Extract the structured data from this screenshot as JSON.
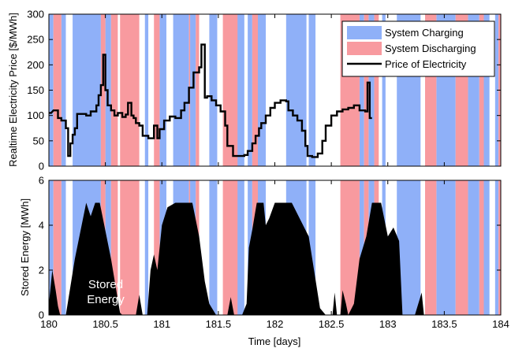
{
  "chart_data": {
    "type": "line",
    "colors": {
      "charging": "#8fb0f8",
      "discharging": "#f89a9f",
      "price_line": "#000000",
      "stored_fill": "#000000"
    },
    "x_axis": {
      "label": "Time [days]",
      "xlim": [
        180,
        184
      ],
      "ticks": [
        180,
        180.5,
        181,
        181.5,
        182,
        182.5,
        183,
        183.5,
        184
      ]
    },
    "panels": [
      {
        "name": "price",
        "ylabel": "Realtime Electricity Price [$/MWh]",
        "ylim": [
          0,
          300
        ],
        "yticks": [
          0,
          50,
          100,
          150,
          200,
          250,
          300
        ]
      },
      {
        "name": "storage",
        "ylabel": "Stored Energy [MWh]",
        "ylim": [
          0,
          6
        ],
        "yticks": [
          0,
          2,
          4,
          6
        ]
      }
    ],
    "legend": {
      "position": "top-right",
      "entries": [
        "System Charging",
        "System Discharging",
        "Price of Electricity"
      ]
    },
    "annotation": [
      "Stored",
      "Energy"
    ],
    "charging_intervals": [
      [
        180.0,
        180.04
      ],
      [
        180.11,
        180.15
      ],
      [
        180.21,
        180.46
      ],
      [
        180.5,
        180.55
      ],
      [
        180.85,
        180.88
      ],
      [
        180.98,
        181.04
      ],
      [
        181.1,
        181.24
      ],
      [
        181.25,
        181.3
      ],
      [
        181.42,
        181.49
      ],
      [
        181.62,
        181.73
      ],
      [
        181.76,
        181.8
      ],
      [
        181.85,
        181.92
      ],
      [
        182.1,
        182.28
      ],
      [
        182.3,
        182.36
      ],
      [
        182.75,
        182.79
      ],
      [
        182.83,
        182.88
      ],
      [
        182.95,
        182.98
      ],
      [
        183.08,
        183.29
      ],
      [
        183.43,
        183.6
      ],
      [
        183.71,
        183.81
      ],
      [
        183.85,
        183.9
      ],
      [
        183.95,
        183.98
      ]
    ],
    "discharging_intervals": [
      [
        180.04,
        180.11
      ],
      [
        180.46,
        180.5
      ],
      [
        180.55,
        180.61
      ],
      [
        180.63,
        180.8
      ],
      [
        180.93,
        180.98
      ],
      [
        181.24,
        181.25
      ],
      [
        181.3,
        181.33
      ],
      [
        181.54,
        181.67
      ],
      [
        181.8,
        181.85
      ],
      [
        182.58,
        182.75
      ],
      [
        182.79,
        182.83
      ],
      [
        182.88,
        182.92
      ],
      [
        183.33,
        183.43
      ],
      [
        183.6,
        183.71
      ],
      [
        183.81,
        183.85
      ],
      [
        183.98,
        184.0
      ]
    ],
    "price_series": {
      "name": "Price of Electricity",
      "step_points": [
        [
          180.0,
          105
        ],
        [
          180.02,
          105
        ],
        [
          180.04,
          110
        ],
        [
          180.08,
          110
        ],
        [
          180.08,
          95
        ],
        [
          180.11,
          95
        ],
        [
          180.11,
          90
        ],
        [
          180.15,
          90
        ],
        [
          180.15,
          75
        ],
        [
          180.17,
          75
        ],
        [
          180.17,
          20
        ],
        [
          180.19,
          20
        ],
        [
          180.19,
          45
        ],
        [
          180.21,
          45
        ],
        [
          180.21,
          62
        ],
        [
          180.23,
          62
        ],
        [
          180.23,
          75
        ],
        [
          180.25,
          75
        ],
        [
          180.25,
          103
        ],
        [
          180.33,
          103
        ],
        [
          180.33,
          100
        ],
        [
          180.37,
          100
        ],
        [
          180.37,
          108
        ],
        [
          180.42,
          108
        ],
        [
          180.42,
          120
        ],
        [
          180.44,
          120
        ],
        [
          180.44,
          140
        ],
        [
          180.46,
          140
        ],
        [
          180.46,
          160
        ],
        [
          180.48,
          160
        ],
        [
          180.48,
          220
        ],
        [
          180.5,
          220
        ],
        [
          180.5,
          150
        ],
        [
          180.52,
          150
        ],
        [
          180.52,
          120
        ],
        [
          180.55,
          120
        ],
        [
          180.55,
          110
        ],
        [
          180.58,
          110
        ],
        [
          180.58,
          100
        ],
        [
          180.61,
          100
        ],
        [
          180.61,
          105
        ],
        [
          180.65,
          105
        ],
        [
          180.65,
          97
        ],
        [
          180.68,
          97
        ],
        [
          180.68,
          102
        ],
        [
          180.7,
          102
        ],
        [
          180.7,
          125
        ],
        [
          180.73,
          125
        ],
        [
          180.73,
          100
        ],
        [
          180.75,
          100
        ],
        [
          180.75,
          95
        ],
        [
          180.77,
          95
        ],
        [
          180.77,
          85
        ],
        [
          180.8,
          85
        ],
        [
          180.8,
          80
        ],
        [
          180.83,
          80
        ],
        [
          180.83,
          60
        ],
        [
          180.88,
          60
        ],
        [
          180.88,
          55
        ],
        [
          180.93,
          55
        ],
        [
          180.93,
          80
        ],
        [
          180.96,
          80
        ],
        [
          180.96,
          55
        ],
        [
          180.98,
          55
        ],
        [
          180.98,
          73
        ],
        [
          181.02,
          73
        ],
        [
          181.02,
          90
        ],
        [
          181.07,
          90
        ],
        [
          181.07,
          98
        ],
        [
          181.12,
          98
        ],
        [
          181.12,
          95
        ],
        [
          181.17,
          95
        ],
        [
          181.17,
          110
        ],
        [
          181.2,
          110
        ],
        [
          181.2,
          125
        ],
        [
          181.24,
          125
        ],
        [
          181.24,
          155
        ],
        [
          181.28,
          155
        ],
        [
          181.28,
          185
        ],
        [
          181.33,
          185
        ],
        [
          181.33,
          195
        ],
        [
          181.35,
          195
        ],
        [
          181.35,
          240
        ],
        [
          181.38,
          240
        ],
        [
          181.38,
          135
        ],
        [
          181.4,
          135
        ],
        [
          181.4,
          138
        ],
        [
          181.44,
          138
        ],
        [
          181.44,
          130
        ],
        [
          181.48,
          130
        ],
        [
          181.48,
          120
        ],
        [
          181.52,
          120
        ],
        [
          181.52,
          108
        ],
        [
          181.56,
          108
        ],
        [
          181.56,
          80
        ],
        [
          181.58,
          80
        ],
        [
          181.58,
          40
        ],
        [
          181.63,
          40
        ],
        [
          181.63,
          20
        ],
        [
          181.73,
          20
        ],
        [
          181.73,
          22
        ],
        [
          181.76,
          22
        ],
        [
          181.76,
          30
        ],
        [
          181.8,
          30
        ],
        [
          181.8,
          45
        ],
        [
          181.83,
          45
        ],
        [
          181.83,
          60
        ],
        [
          181.86,
          60
        ],
        [
          181.86,
          75
        ],
        [
          181.88,
          75
        ],
        [
          181.88,
          85
        ],
        [
          181.92,
          85
        ],
        [
          181.92,
          100
        ],
        [
          181.96,
          100
        ],
        [
          181.96,
          115
        ],
        [
          182.0,
          115
        ],
        [
          182.0,
          125
        ],
        [
          182.05,
          125
        ],
        [
          182.05,
          130
        ],
        [
          182.1,
          130
        ],
        [
          182.1,
          128
        ],
        [
          182.12,
          128
        ],
        [
          182.12,
          110
        ],
        [
          182.16,
          110
        ],
        [
          182.16,
          100
        ],
        [
          182.2,
          100
        ],
        [
          182.2,
          90
        ],
        [
          182.24,
          90
        ],
        [
          182.24,
          70
        ],
        [
          182.27,
          70
        ],
        [
          182.27,
          40
        ],
        [
          182.29,
          40
        ],
        [
          182.29,
          20
        ],
        [
          182.33,
          20
        ],
        [
          182.33,
          18
        ],
        [
          182.38,
          18
        ],
        [
          182.38,
          25
        ],
        [
          182.42,
          25
        ],
        [
          182.42,
          50
        ],
        [
          182.45,
          50
        ],
        [
          182.45,
          80
        ],
        [
          182.5,
          80
        ],
        [
          182.5,
          100
        ],
        [
          182.55,
          100
        ],
        [
          182.55,
          108
        ],
        [
          182.6,
          108
        ],
        [
          182.6,
          112
        ],
        [
          182.65,
          112
        ],
        [
          182.65,
          115
        ],
        [
          182.7,
          115
        ],
        [
          182.7,
          120
        ],
        [
          182.75,
          120
        ],
        [
          182.75,
          110
        ],
        [
          182.8,
          110
        ],
        [
          182.8,
          108
        ],
        [
          182.82,
          108
        ],
        [
          182.82,
          165
        ],
        [
          182.84,
          165
        ],
        [
          182.84,
          95
        ],
        [
          182.86,
          95
        ]
      ]
    },
    "stored_energy_series": {
      "name": "Stored Energy",
      "points": [
        [
          180.0,
          0.5
        ],
        [
          180.03,
          2.0
        ],
        [
          180.06,
          1.1
        ],
        [
          180.08,
          0.4
        ],
        [
          180.1,
          0.0
        ],
        [
          180.15,
          0.0
        ],
        [
          180.23,
          2.5
        ],
        [
          180.33,
          5.0
        ],
        [
          180.37,
          4.4
        ],
        [
          180.41,
          5.0
        ],
        [
          180.45,
          5.0
        ],
        [
          180.55,
          2.5
        ],
        [
          180.63,
          0.1
        ],
        [
          180.65,
          0.0
        ],
        [
          180.77,
          0.0
        ],
        [
          180.8,
          0.9
        ],
        [
          180.83,
          0.0
        ],
        [
          180.87,
          0.0
        ],
        [
          180.9,
          2.0
        ],
        [
          180.93,
          2.7
        ],
        [
          180.96,
          2.0
        ],
        [
          181.0,
          4.0
        ],
        [
          181.05,
          4.8
        ],
        [
          181.12,
          5.0
        ],
        [
          181.27,
          5.0
        ],
        [
          181.33,
          3.5
        ],
        [
          181.38,
          1.5
        ],
        [
          181.42,
          0.5
        ],
        [
          181.48,
          0.0
        ],
        [
          181.58,
          0.0
        ],
        [
          181.61,
          0.8
        ],
        [
          181.64,
          0.0
        ],
        [
          181.71,
          0.0
        ],
        [
          181.75,
          0.5
        ],
        [
          181.77,
          3.0
        ],
        [
          181.8,
          3.8
        ],
        [
          181.84,
          5.0
        ],
        [
          181.9,
          5.0
        ],
        [
          181.92,
          4.0
        ],
        [
          181.95,
          4.3
        ],
        [
          182.0,
          5.0
        ],
        [
          182.15,
          5.0
        ],
        [
          182.3,
          3.5
        ],
        [
          182.4,
          0.3
        ],
        [
          182.45,
          0.0
        ],
        [
          182.51,
          0.0
        ],
        [
          182.53,
          1.0
        ],
        [
          182.55,
          0.0
        ],
        [
          182.58,
          0.0
        ],
        [
          182.6,
          1.1
        ],
        [
          182.63,
          0.5
        ],
        [
          182.65,
          0.0
        ],
        [
          182.7,
          0.5
        ],
        [
          182.75,
          2.5
        ],
        [
          182.81,
          3.5
        ],
        [
          182.86,
          5.0
        ],
        [
          182.94,
          5.0
        ],
        [
          183.0,
          3.5
        ],
        [
          183.05,
          3.9
        ],
        [
          183.1,
          3.3
        ],
        [
          183.13,
          0.0
        ],
        [
          183.24,
          0.0
        ],
        [
          183.3,
          1.0
        ],
        [
          183.32,
          0.0
        ],
        [
          184.0,
          0.0
        ]
      ]
    }
  }
}
